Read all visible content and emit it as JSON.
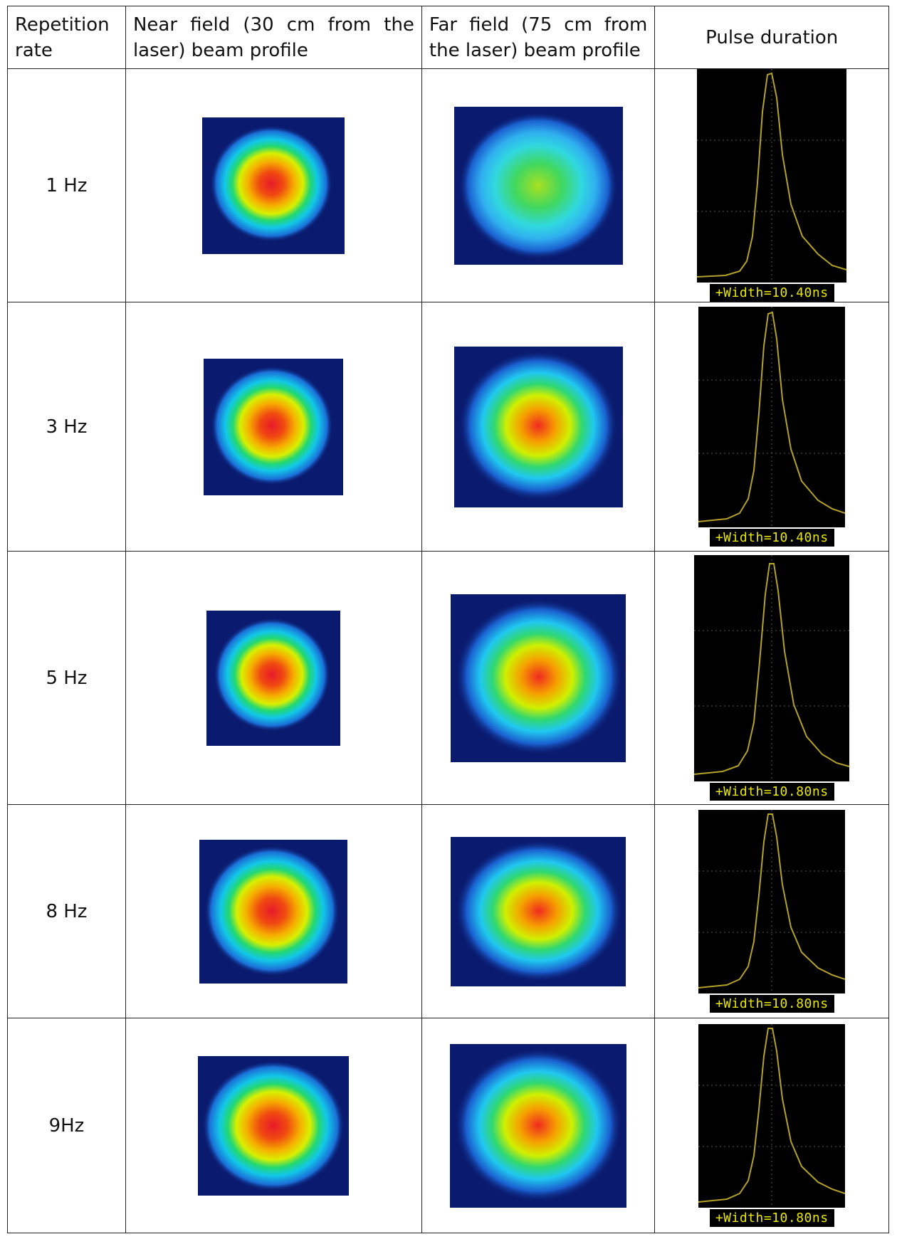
{
  "headers": {
    "rate": "Repetition rate",
    "near": "Near field (30 cm from the laser) beam profile",
    "far": "Far field (75 cm from the laser) beam profile",
    "pulse": "Pulse duration"
  },
  "rows": [
    {
      "rate": "1 Hz",
      "width": "+Width=10.40ns"
    },
    {
      "rate": "3 Hz",
      "width": "+Width=10.40ns"
    },
    {
      "rate": "5 Hz",
      "width": "+Width=10.80ns"
    },
    {
      "rate": "8 Hz",
      "width": "+Width=10.80ns"
    },
    {
      "rate": "9Hz",
      "width": "+Width=10.80ns"
    }
  ],
  "colors": {
    "beam_background": "#0a1a6e",
    "trace": "#b5a22a",
    "scope_background": "#000000",
    "label_text": "#e8e800"
  }
}
